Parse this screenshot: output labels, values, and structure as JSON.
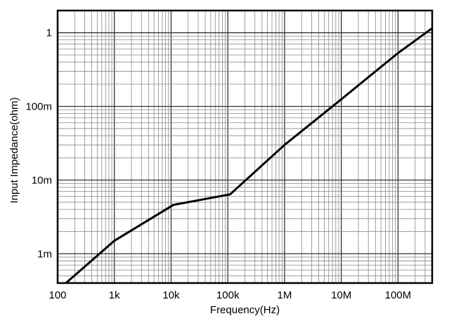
{
  "chart_data": {
    "type": "line",
    "title": "",
    "xlabel": "Frequency(Hz)",
    "ylabel": "Input Impedance(ohm)",
    "x_scale": "log",
    "y_scale": "log",
    "xlim": [
      100,
      400000000
    ],
    "ylim": [
      0.0004,
      2
    ],
    "grid": true,
    "legend": "none",
    "x_ticks": [
      {
        "value": 100,
        "label": "100"
      },
      {
        "value": 1000,
        "label": "1k"
      },
      {
        "value": 10000,
        "label": "10k"
      },
      {
        "value": 100000,
        "label": "100k"
      },
      {
        "value": 1000000,
        "label": "1M"
      },
      {
        "value": 10000000,
        "label": "10M"
      },
      {
        "value": 100000000,
        "label": "100M"
      }
    ],
    "y_ticks": [
      {
        "value": 0.001,
        "label": "1m"
      },
      {
        "value": 0.01,
        "label": "10m"
      },
      {
        "value": 0.1,
        "label": "100m"
      },
      {
        "value": 1,
        "label": "1"
      }
    ],
    "series": [
      {
        "color": "#000000",
        "x": [
          140,
          1000,
          11000,
          110000,
          1000000,
          10000000,
          100000000,
          400000000
        ],
        "y": [
          0.0004,
          0.0015,
          0.0046,
          0.0064,
          0.03,
          0.125,
          0.53,
          1.15
        ]
      }
    ]
  }
}
